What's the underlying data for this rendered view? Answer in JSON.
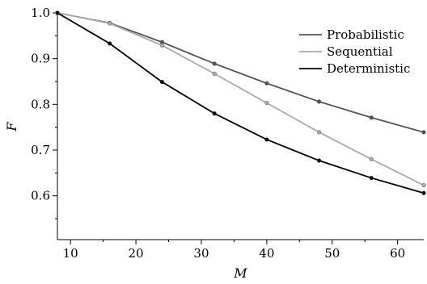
{
  "chart_data": {
    "type": "line",
    "xlabel": "M",
    "ylabel": "F",
    "xlim": [
      8,
      64
    ],
    "ylim": [
      0.5,
      1.0
    ],
    "x_ticks": [
      10,
      20,
      30,
      40,
      50,
      60
    ],
    "y_ticks": [
      0.6,
      0.7,
      0.8,
      0.9,
      1.0
    ],
    "x_tick_labels": [
      "10",
      "20",
      "30",
      "40",
      "50",
      "60"
    ],
    "y_tick_labels": [
      "0.6",
      "0.7",
      "0.8",
      "0.9",
      "1.0"
    ],
    "legend_position": "top-right",
    "grid": false,
    "x": [
      8,
      16,
      24,
      32,
      40,
      48,
      56,
      64
    ],
    "series": [
      {
        "name": "Probabilistic",
        "color": "#555555",
        "values": [
          1.0,
          0.978,
          0.936,
          0.889,
          0.846,
          0.806,
          0.771,
          0.739
        ]
      },
      {
        "name": "Sequential",
        "color": "#aaaaaa",
        "values": [
          1.0,
          0.977,
          0.929,
          0.867,
          0.803,
          0.739,
          0.68,
          0.623
        ]
      },
      {
        "name": "Deterministic",
        "color": "#000000",
        "values": [
          1.0,
          0.933,
          0.849,
          0.78,
          0.723,
          0.677,
          0.639,
          0.606
        ]
      }
    ]
  }
}
